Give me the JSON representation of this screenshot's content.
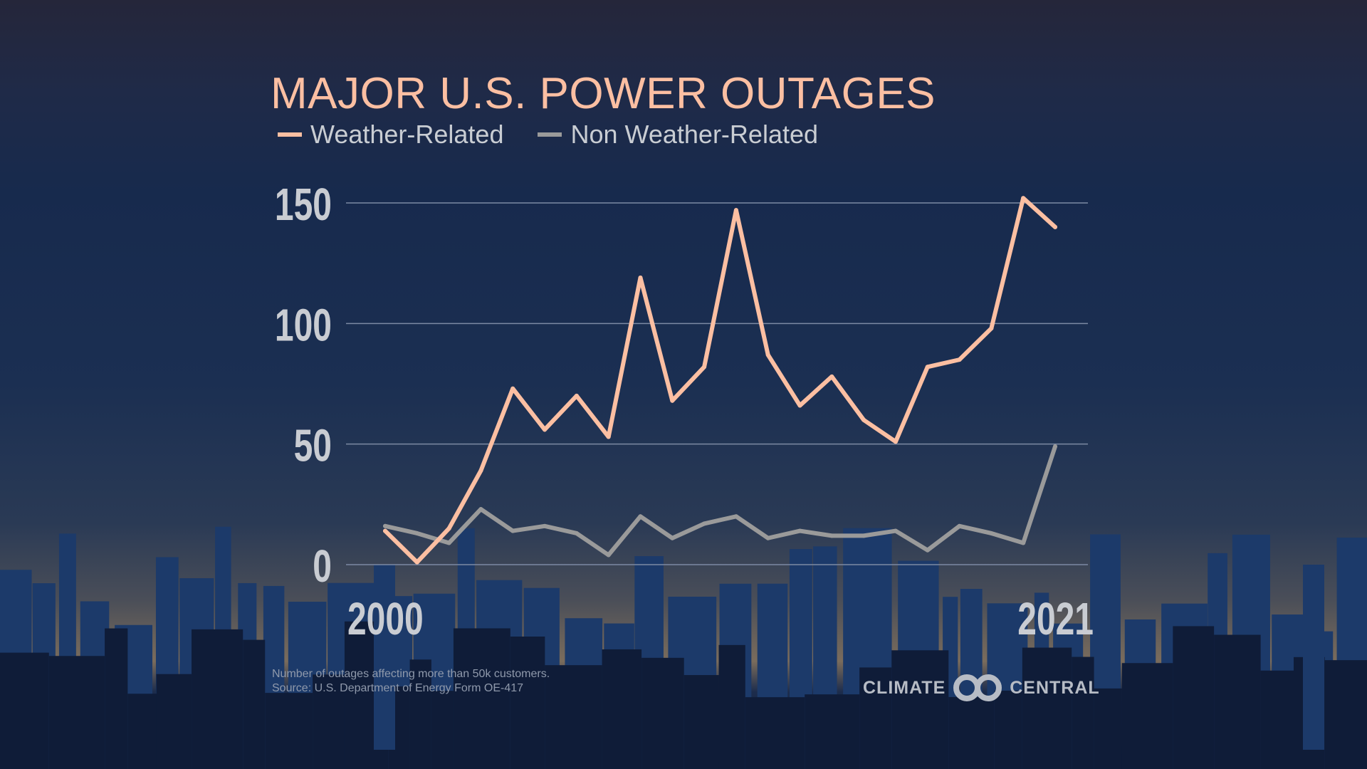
{
  "title": "MAJOR U.S. POWER OUTAGES",
  "legend": [
    {
      "label": "Weather-Related",
      "color": "#fcbfa2"
    },
    {
      "label": "Non Weather-Related",
      "color": "#9a9a9a"
    }
  ],
  "footnote": {
    "line1": "Number of outages affecting more than 50k customers.",
    "line2": "Source: U.S. Department of Energy Form OE-417"
  },
  "logo": {
    "left": "CLIMATE",
    "right": "CENTRAL"
  },
  "chart_data": {
    "type": "line",
    "title": "MAJOR U.S. POWER OUTAGES",
    "x": [
      2000,
      2001,
      2002,
      2003,
      2004,
      2005,
      2006,
      2007,
      2008,
      2009,
      2010,
      2011,
      2012,
      2013,
      2014,
      2015,
      2016,
      2017,
      2018,
      2019,
      2020,
      2021
    ],
    "x_tick_labels": [
      "2000",
      "2021"
    ],
    "y_ticks": [
      0,
      50,
      100,
      150
    ],
    "y_tick_labels": [
      "0",
      "50",
      "100",
      "150"
    ],
    "ylim": [
      0,
      150
    ],
    "grid": true,
    "legend_placement": "top-left",
    "series": [
      {
        "name": "Weather-Related",
        "color": "#fcbfa2",
        "values": [
          14,
          1,
          15,
          39,
          73,
          56,
          70,
          53,
          119,
          68,
          82,
          147,
          87,
          66,
          78,
          60,
          51,
          82,
          85,
          98,
          152,
          140
        ]
      },
      {
        "name": "Non Weather-Related",
        "color": "#9a9a9a",
        "values": [
          16,
          13,
          9,
          23,
          14,
          16,
          13,
          4,
          20,
          11,
          17,
          20,
          11,
          14,
          12,
          12,
          14,
          6,
          16,
          13,
          9,
          49
        ]
      }
    ]
  }
}
